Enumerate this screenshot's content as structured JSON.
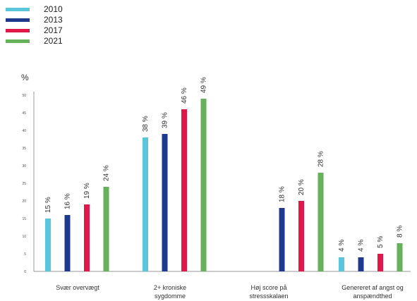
{
  "chart_data": {
    "type": "bar",
    "ylabel": "%",
    "ylim": [
      0,
      50
    ],
    "yticks": [
      0,
      5,
      10,
      15,
      20,
      25,
      30,
      35,
      40,
      45,
      50
    ],
    "grid": false,
    "legend_position": "top-left",
    "categories": [
      [
        "Svær overvægt"
      ],
      [
        "2+ kroniske",
        "sygdomme"
      ],
      [
        "Høj score på",
        "stressskalaen"
      ],
      [
        "Genereret af angst og",
        "anspændthed"
      ]
    ],
    "series": [
      {
        "name": "2010",
        "color": "#5bc5dc",
        "values": [
          15,
          38,
          null,
          4
        ],
        "labels": [
          "15 %",
          "38 %",
          "",
          "4 %"
        ]
      },
      {
        "name": "2013",
        "color": "#1e3a8c",
        "values": [
          16,
          39,
          18,
          4
        ],
        "labels": [
          "16 %",
          "39 %",
          "18 %",
          "4 %"
        ]
      },
      {
        "name": "2017",
        "color": "#e0184a",
        "values": [
          19,
          46,
          20,
          5
        ],
        "labels": [
          "19 %",
          "46 %",
          "20 %",
          "5 %"
        ]
      },
      {
        "name": "2021",
        "color": "#66b25a",
        "values": [
          24,
          49,
          28,
          8
        ],
        "labels": [
          "24 %",
          "49 %",
          "28 %",
          "8 %"
        ]
      }
    ]
  }
}
